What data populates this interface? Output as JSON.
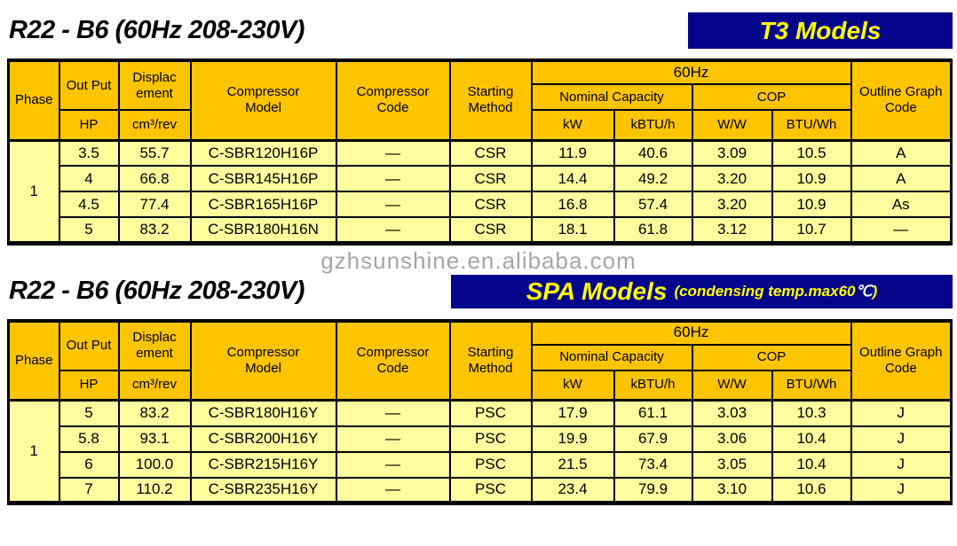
{
  "colors": {
    "navy": "#05058C",
    "badge_yellow": "#FFFF00",
    "header_gold": "#FDC400",
    "row_yellow": "#FEFE9E",
    "watermark_gray": "#A6A6A6",
    "degree_symbol": "#EDEDFF"
  },
  "watermark": "gzhsunshine.en.alibaba.com",
  "sections": [
    {
      "title": "R22 - B6 (60Hz 208-230V)",
      "badge": {
        "label": "T3 Models"
      },
      "table": {
        "headers": {
          "phase": "Phase",
          "output": "Out Put",
          "output_unit": "HP",
          "displacement": "Displac\nement",
          "displacement_unit": "cm³/rev",
          "model": "Compressor\nModel",
          "code": "Compressor\nCode",
          "starting": "Starting\nMethod",
          "freq": "60Hz",
          "nominal": "Nominal Capacity",
          "cop": "COP",
          "kw": "kW",
          "kbtu": "kBTU/h",
          "ww": "W/W",
          "btuwh": "BTU/Wh",
          "outline": "Outline Graph\nCode"
        },
        "phase": "1",
        "rows": [
          [
            "3.5",
            "55.7",
            "C-SBR120H16P",
            "—",
            "CSR",
            "11.9",
            "40.6",
            "3.09",
            "10.5",
            "A"
          ],
          [
            "4",
            "66.8",
            "C-SBR145H16P",
            "—",
            "CSR",
            "14.4",
            "49.2",
            "3.20",
            "10.9",
            "A"
          ],
          [
            "4.5",
            "77.4",
            "C-SBR165H16P",
            "—",
            "CSR",
            "16.8",
            "57.4",
            "3.20",
            "10.9",
            "As"
          ],
          [
            "5",
            "83.2",
            "C-SBR180H16N",
            "—",
            "CSR",
            "18.1",
            "61.8",
            "3.12",
            "10.7",
            "—"
          ]
        ]
      }
    },
    {
      "title": "R22 - B6 (60Hz 208-230V)",
      "badge": {
        "label": "SPA Models",
        "note_prefix": "(condensing temp.max60",
        "note_symbol": "℃",
        "note_suffix": ")"
      },
      "table": {
        "headers": {
          "phase": "Phase",
          "output": "Out Put",
          "output_unit": "HP",
          "displacement": "Displac\nement",
          "displacement_unit": "cm³/rev",
          "model": "Compressor\nModel",
          "code": "Compressor\nCode",
          "starting": "Starting\nMethod",
          "freq": "60Hz",
          "nominal": "Nominal Capacity",
          "cop": "COP",
          "kw": "kW",
          "kbtu": "kBTU/h",
          "ww": "W/W",
          "btuwh": "BTU/Wh",
          "outline": "Outline Graph\nCode"
        },
        "phase": "1",
        "rows": [
          [
            "5",
            "83.2",
            "C-SBR180H16Y",
            "—",
            "PSC",
            "17.9",
            "61.1",
            "3.03",
            "10.3",
            "J"
          ],
          [
            "5.8",
            "93.1",
            "C-SBR200H16Y",
            "—",
            "PSC",
            "19.9",
            "67.9",
            "3.06",
            "10.4",
            "J"
          ],
          [
            "6",
            "100.0",
            "C-SBR215H16Y",
            "—",
            "PSC",
            "21.5",
            "73.4",
            "3.05",
            "10.4",
            "J"
          ],
          [
            "7",
            "110.2",
            "C-SBR235H16Y",
            "—",
            "PSC",
            "23.4",
            "79.9",
            "3.10",
            "10.6",
            "J"
          ]
        ]
      }
    }
  ]
}
